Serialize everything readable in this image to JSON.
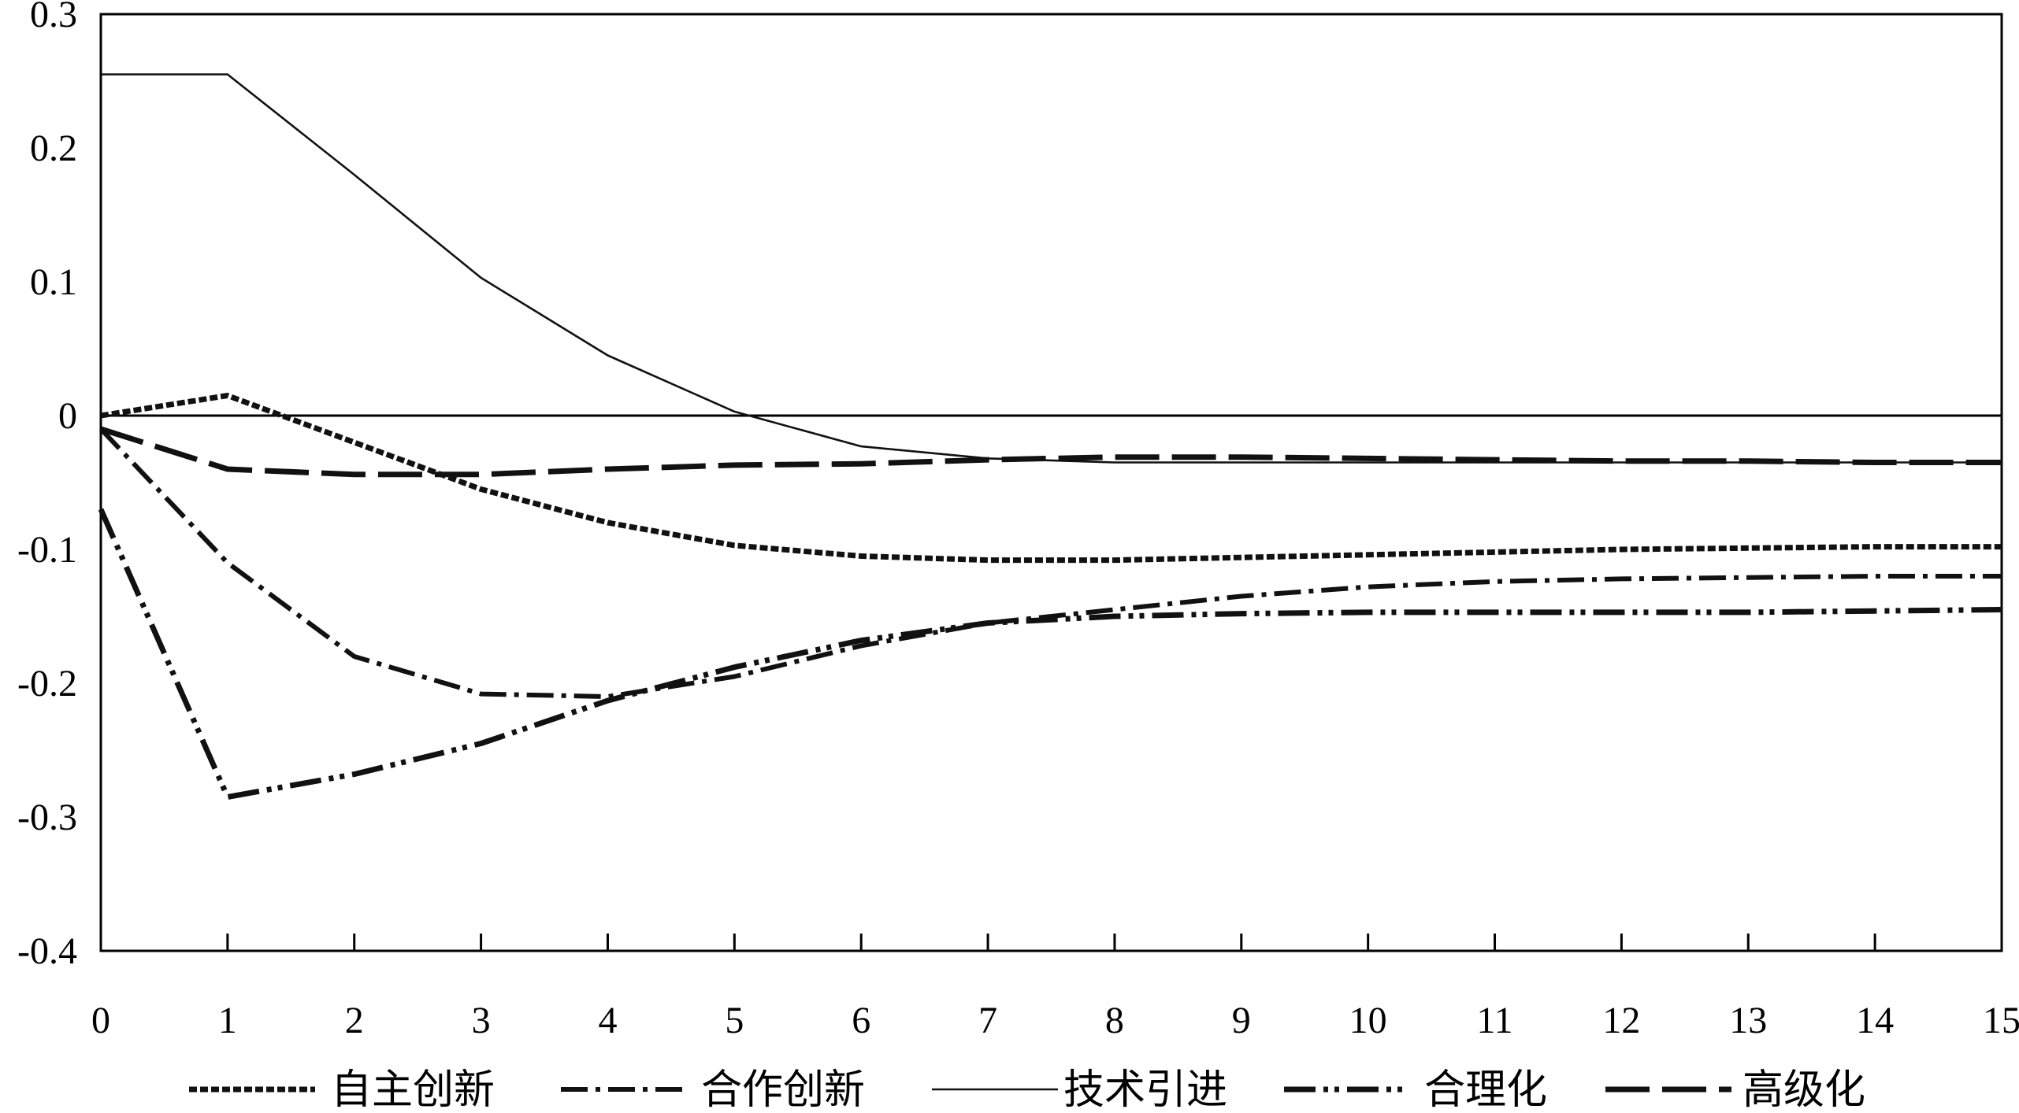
{
  "chart_data": {
    "type": "line",
    "title": "",
    "xlabel": "",
    "ylabel": "",
    "x": [
      0,
      1,
      2,
      3,
      4,
      5,
      6,
      7,
      8,
      9,
      10,
      11,
      12,
      13,
      14,
      15
    ],
    "xlim": [
      0,
      15
    ],
    "ylim": [
      -0.4,
      0.3
    ],
    "x_ticks": [
      "0",
      "1",
      "2",
      "3",
      "4",
      "5",
      "6",
      "7",
      "8",
      "9",
      "10",
      "11",
      "12",
      "13",
      "14",
      "15"
    ],
    "y_ticks": [
      "0.3",
      "0.2",
      "0.1",
      "0",
      "-0.1",
      "-0.2",
      "-0.3",
      "-0.4"
    ],
    "y_tick_values": [
      0.3,
      0.2,
      0.1,
      0,
      -0.1,
      -0.2,
      -0.3,
      -0.4
    ],
    "grid": false,
    "zero_line": true,
    "legend_position": "bottom",
    "series": [
      {
        "name": "自主创新",
        "style": "dense-dash",
        "values": [
          0.0,
          0.015,
          -0.02,
          -0.055,
          -0.08,
          -0.097,
          -0.105,
          -0.108,
          -0.108,
          -0.106,
          -0.104,
          -0.102,
          -0.1,
          -0.099,
          -0.098,
          -0.098
        ]
      },
      {
        "name": "合作创新",
        "style": "dash-dot",
        "values": [
          -0.01,
          -0.11,
          -0.18,
          -0.208,
          -0.21,
          -0.195,
          -0.172,
          -0.155,
          -0.145,
          -0.135,
          -0.128,
          -0.124,
          -0.122,
          -0.121,
          -0.12,
          -0.12
        ]
      },
      {
        "name": "技术引进",
        "style": "solid-thin",
        "values": [
          0.255,
          0.255,
          0.18,
          0.103,
          0.045,
          0.003,
          -0.023,
          -0.032,
          -0.035,
          -0.035,
          -0.035,
          -0.035,
          -0.035,
          -0.035,
          -0.035,
          -0.035
        ]
      },
      {
        "name": "合理化",
        "style": "dash-dot-dot",
        "values": [
          -0.07,
          -0.285,
          -0.268,
          -0.245,
          -0.213,
          -0.188,
          -0.168,
          -0.155,
          -0.15,
          -0.148,
          -0.147,
          -0.147,
          -0.147,
          -0.147,
          -0.146,
          -0.145
        ]
      },
      {
        "name": "高级化",
        "style": "long-dash",
        "values": [
          -0.01,
          -0.04,
          -0.044,
          -0.044,
          -0.04,
          -0.037,
          -0.036,
          -0.033,
          -0.031,
          -0.031,
          -0.032,
          -0.033,
          -0.034,
          -0.034,
          -0.035,
          -0.035
        ]
      }
    ]
  }
}
